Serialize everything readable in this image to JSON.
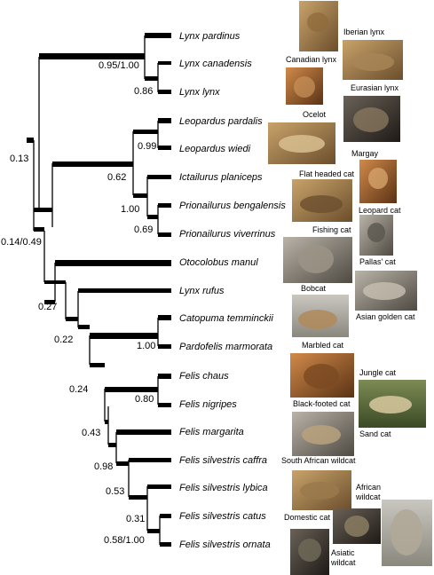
{
  "taxa": [
    "Lynx pardinus",
    "Lynx canadensis",
    "Lynx lynx",
    "Leopardus pardalis",
    "Leopardus wiedi",
    "Ictailurus planiceps",
    "Prionailurus bengalensis",
    "Prionailurus viverrinus",
    "Otocolobus manul",
    "Lynx rufus",
    "Catopuma temminckii",
    "Pardofelis marmorata",
    "Felis chaus",
    "Felis nigripes",
    "Felis margarita",
    "Felis silvestris caffra",
    "Felis silvestris lybica",
    "Felis silvestris catus",
    "Felis silvestris ornata"
  ],
  "supports": [
    "0.95/1.00",
    "0.86",
    "0.99",
    "0.62",
    "1.00",
    "0.69",
    "0.13",
    "0.14/0.49",
    "0.27",
    "0.22",
    "1.00",
    "0.24",
    "0.80",
    "0.43",
    "0.98",
    "0.53",
    "0.31",
    "0.58/1.00"
  ],
  "common_names": [
    "Iberian lynx",
    "Canadian lynx",
    "Eurasian lynx",
    "Ocelot",
    "Margay",
    "Flat headed cat",
    "Leopard cat",
    "Fishing cat",
    "Pallas' cat",
    "Bobcat",
    "Asian golden cat",
    "Marbled cat",
    "Jungle cat",
    "Black-footed cat",
    "Sand cat",
    "South African wildcat",
    "African",
    "wildcat",
    "Domestic cat",
    "Asiatic",
    "wildcat"
  ],
  "photos": [
    "iberian-lynx-photo",
    "canadian-lynx-photo",
    "eurasian-lynx-photo",
    "ocelot-photo",
    "margay-photo",
    "flat-headed-cat-photo",
    "leopard-cat-photo",
    "fishing-cat-photo",
    "pallas-cat-photo",
    "bobcat-photo",
    "asian-golden-cat-photo",
    "marbled-cat-photo",
    "jungle-cat-photo",
    "black-footed-cat-photo",
    "sand-cat-photo",
    "african-wildcat-photo",
    "domestic-cat-photo",
    "asiatic-wildcat-photo",
    "domestic-cat-large-photo"
  ]
}
